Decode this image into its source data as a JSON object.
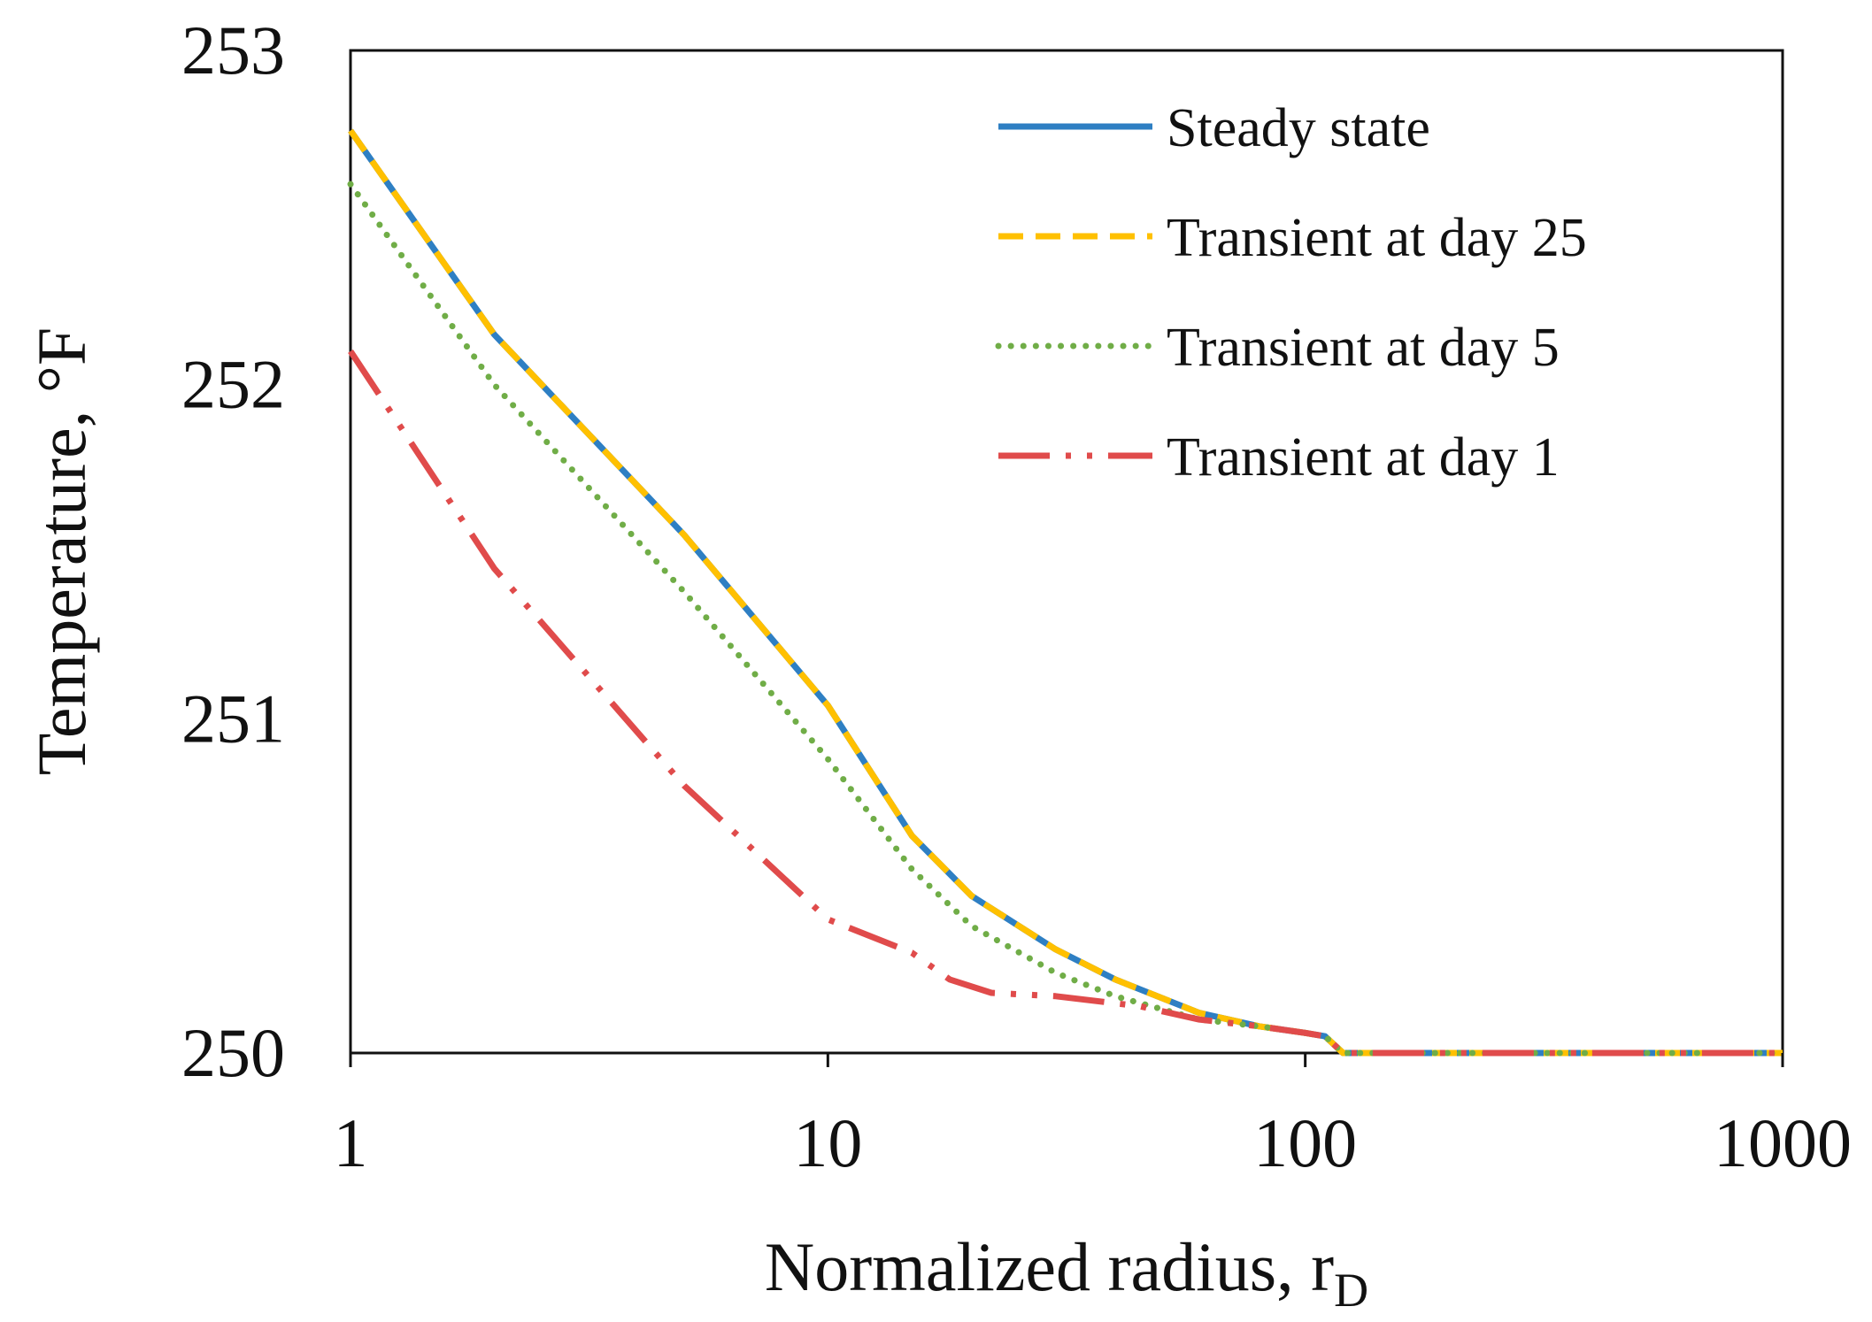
{
  "chart_data": {
    "type": "line",
    "x_scale": "log",
    "xlabel": "Normalized radius, r",
    "xlabel_subscript": "D",
    "ylabel": "Temperature, °F",
    "xlim": [
      1,
      1000
    ],
    "ylim": [
      250,
      253
    ],
    "x_ticks": [
      1,
      10,
      100,
      1000
    ],
    "x_tick_labels": [
      "1",
      "10",
      "100",
      "1000"
    ],
    "y_ticks": [
      250,
      251,
      252,
      253
    ],
    "y_tick_labels": [
      "250",
      "251",
      "252",
      "253"
    ],
    "grid": false,
    "legend_position": "top-right",
    "series": [
      {
        "name": "Steady state",
        "color": "#2E7FC3",
        "dash": "solid",
        "points": [
          [
            1,
            252.76
          ],
          [
            2,
            252.15
          ],
          [
            5,
            251.55
          ],
          [
            10,
            251.04
          ],
          [
            15,
            250.65
          ],
          [
            20,
            250.47
          ],
          [
            30,
            250.31
          ],
          [
            40,
            250.22
          ],
          [
            60,
            250.12
          ],
          [
            80,
            250.08
          ],
          [
            100,
            250.06
          ],
          [
            110,
            250.05
          ],
          [
            120,
            250.0
          ],
          [
            1000,
            250.0
          ]
        ]
      },
      {
        "name": "Transient at day 25",
        "color": "#FFC000",
        "dash": "dashed",
        "points": [
          [
            1,
            252.76
          ],
          [
            2,
            252.15
          ],
          [
            5,
            251.55
          ],
          [
            10,
            251.04
          ],
          [
            15,
            250.65
          ],
          [
            20,
            250.47
          ],
          [
            30,
            250.31
          ],
          [
            40,
            250.22
          ],
          [
            60,
            250.12
          ],
          [
            80,
            250.08
          ],
          [
            100,
            250.06
          ],
          [
            110,
            250.05
          ],
          [
            120,
            250.0
          ],
          [
            1000,
            250.0
          ]
        ]
      },
      {
        "name": "Transient at day 5",
        "color": "#70AD47",
        "dash": "dotted",
        "points": [
          [
            1,
            252.6
          ],
          [
            2,
            252.0
          ],
          [
            5,
            251.38
          ],
          [
            10,
            250.88
          ],
          [
            15,
            250.55
          ],
          [
            20,
            250.38
          ],
          [
            30,
            250.24
          ],
          [
            40,
            250.17
          ],
          [
            60,
            250.1
          ],
          [
            80,
            250.08
          ],
          [
            100,
            250.06
          ],
          [
            110,
            250.05
          ],
          [
            120,
            250.0
          ],
          [
            1000,
            250.0
          ]
        ]
      },
      {
        "name": "Transient at day 1",
        "color": "#E04B4B",
        "dash": "dashdotdot",
        "points": [
          [
            1,
            252.1
          ],
          [
            2,
            251.45
          ],
          [
            5,
            250.8
          ],
          [
            10,
            250.4
          ],
          [
            15,
            250.3
          ],
          [
            18,
            250.22
          ],
          [
            22,
            250.18
          ],
          [
            30,
            250.17
          ],
          [
            45,
            250.14
          ],
          [
            60,
            250.1
          ],
          [
            80,
            250.08
          ],
          [
            100,
            250.06
          ],
          [
            110,
            250.05
          ],
          [
            120,
            250.0
          ],
          [
            1000,
            250.0
          ]
        ]
      }
    ]
  }
}
